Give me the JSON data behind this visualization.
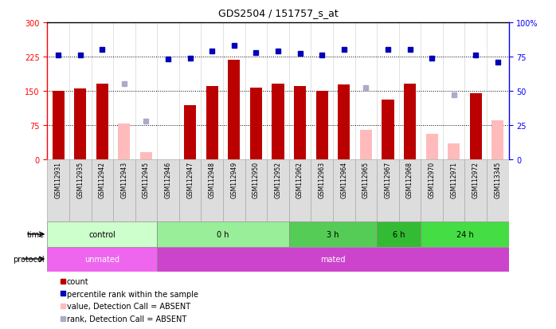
{
  "title": "GDS2504 / 151757_s_at",
  "samples": [
    "GSM112931",
    "GSM112935",
    "GSM112942",
    "GSM112943",
    "GSM112945",
    "GSM112946",
    "GSM112947",
    "GSM112948",
    "GSM112949",
    "GSM112950",
    "GSM112952",
    "GSM112962",
    "GSM112963",
    "GSM112964",
    "GSM112965",
    "GSM112967",
    "GSM112968",
    "GSM112970",
    "GSM112971",
    "GSM112972",
    "GSM113345"
  ],
  "counts": [
    150,
    155,
    165,
    null,
    null,
    null,
    118,
    160,
    218,
    157,
    165,
    160,
    150,
    163,
    null,
    130,
    165,
    null,
    null,
    145,
    null
  ],
  "counts_absent": [
    null,
    null,
    null,
    78,
    15,
    null,
    null,
    null,
    null,
    null,
    null,
    null,
    null,
    null,
    65,
    null,
    null,
    55,
    35,
    null,
    85
  ],
  "percentile_rank": [
    76,
    76,
    80,
    null,
    null,
    73,
    74,
    79,
    83,
    78,
    79,
    77,
    76,
    80,
    null,
    80,
    80,
    74,
    null,
    76,
    71
  ],
  "percentile_rank_absent": [
    null,
    null,
    null,
    55,
    28,
    null,
    null,
    null,
    null,
    null,
    null,
    null,
    null,
    null,
    52,
    null,
    null,
    null,
    47,
    null,
    null
  ],
  "time_groups": [
    {
      "label": "control",
      "start": 0,
      "end": 5,
      "color": "#ccffcc"
    },
    {
      "label": "0 h",
      "start": 5,
      "end": 11,
      "color": "#99ee99"
    },
    {
      "label": "3 h",
      "start": 11,
      "end": 15,
      "color": "#55cc55"
    },
    {
      "label": "6 h",
      "start": 15,
      "end": 17,
      "color": "#33bb33"
    },
    {
      "label": "24 h",
      "start": 17,
      "end": 21,
      "color": "#44dd44"
    }
  ],
  "protocol_groups": [
    {
      "label": "unmated",
      "start": 0,
      "end": 5,
      "color": "#ee66ee"
    },
    {
      "label": "mated",
      "start": 5,
      "end": 21,
      "color": "#cc44cc"
    }
  ],
  "ylim_left": [
    0,
    300
  ],
  "ylim_right": [
    0,
    100
  ],
  "yticks_left": [
    0,
    75,
    150,
    225,
    300
  ],
  "yticks_right": [
    0,
    25,
    50,
    75,
    100
  ],
  "bar_color": "#bb0000",
  "bar_absent_color": "#ffbbbb",
  "dot_color": "#0000bb",
  "dot_absent_color": "#aaaacc",
  "hline_values": [
    75,
    150,
    225
  ],
  "xticklabel_bg": "#dddddd",
  "xticklabel_border": "#aaaaaa"
}
